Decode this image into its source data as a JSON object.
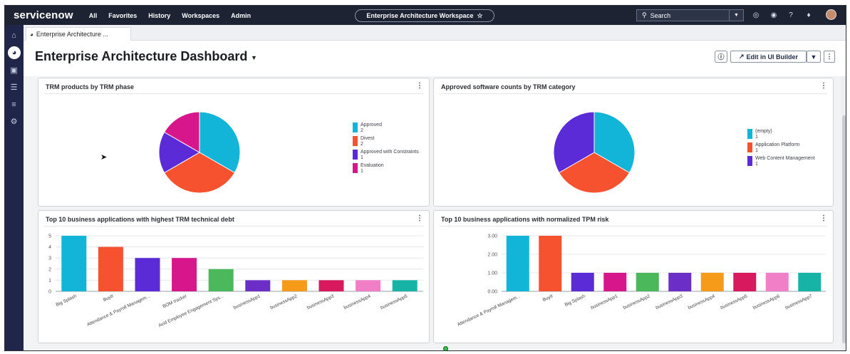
{
  "topbar": {
    "logo": "servicenow",
    "nav": [
      "All",
      "Favorites",
      "History",
      "Workspaces",
      "Admin"
    ],
    "workspace_title": "Enterprise Architecture Workspace",
    "star": "☆",
    "search_placeholder": "Search"
  },
  "tabs": [
    {
      "label": "Enterprise Architecture ..."
    }
  ],
  "header": {
    "title": "Enterprise Architecture Dashboard",
    "edit_button": "Edit in UI Builder"
  },
  "cards": {
    "trm_phase": {
      "title": "TRM products by TRM phase"
    },
    "trm_category": {
      "title": "Approved software counts by TRM category"
    },
    "tech_debt": {
      "title": "Top 10 business applications with highest TRM technical debt"
    },
    "tpm_risk": {
      "title": "Top 10 business applications with normalized TPM risk"
    }
  },
  "colors": {
    "cyan": "#12b4d8",
    "orange": "#f6522f",
    "purple": "#5a2bd6",
    "magenta": "#d6168a",
    "pink": "#e8378f",
    "green": "#4cb85c",
    "violet": "#6b2ec6",
    "amber": "#f59a19",
    "crimson": "#d8195d",
    "lightpink": "#f07fc7",
    "teal": "#17b3a6"
  },
  "chart_data": [
    {
      "type": "pie",
      "title": "TRM products by TRM phase",
      "slices": [
        {
          "label": "Approved",
          "value": 2,
          "color": "#12b4d8"
        },
        {
          "label": "Divest",
          "value": 2,
          "color": "#f6522f"
        },
        {
          "label": "Approved with Constraints",
          "value": 1,
          "color": "#5a2bd6"
        },
        {
          "label": "Evaluation",
          "value": 1,
          "color": "#d6168a"
        }
      ],
      "legend": "right"
    },
    {
      "type": "pie",
      "title": "Approved software counts by TRM category",
      "slices": [
        {
          "label": "(empty)",
          "value": 1,
          "color": "#12b4d8"
        },
        {
          "label": "Application Platform",
          "value": 1,
          "color": "#f6522f"
        },
        {
          "label": "Web Content Management",
          "value": 1,
          "color": "#5a2bd6"
        }
      ],
      "legend": "right"
    },
    {
      "type": "bar",
      "title": "Top 10 business applications with highest TRM technical debt",
      "categories": [
        "Big Splash",
        "BuyIt",
        "Attendance & Payroll Managem...",
        "BOM tracker",
        "Avid Employee Engagement Sys...",
        "businessApp1",
        "businessApp2",
        "businessApp3",
        "businessApp4",
        "businessApp5"
      ],
      "values": [
        5,
        4,
        3,
        3,
        2,
        1,
        1,
        1,
        1,
        1
      ],
      "colors": [
        "#12b4d8",
        "#f6522f",
        "#5a2bd6",
        "#d6168a",
        "#4cb85c",
        "#6b2ec6",
        "#f59a19",
        "#d8195d",
        "#f07fc7",
        "#17b3a6"
      ],
      "yticks": [
        "0",
        "1",
        "2",
        "3",
        "4",
        "5"
      ],
      "ylim": [
        0,
        5
      ],
      "grid": true
    },
    {
      "type": "bar",
      "title": "Top 10 business applications with normalized TPM risk",
      "categories": [
        "Attendance & Payroll Managem...",
        "BuyIt",
        "Big Splash",
        "businessApp1",
        "businessApp2",
        "businessApp3",
        "businessApp4",
        "businessApp5",
        "businessApp6",
        "businessApp7"
      ],
      "values": [
        3,
        3,
        1,
        1,
        1,
        1,
        1,
        1,
        1,
        1
      ],
      "colors": [
        "#12b4d8",
        "#f6522f",
        "#5a2bd6",
        "#d6168a",
        "#4cb85c",
        "#6b2ec6",
        "#f59a19",
        "#d8195d",
        "#f07fc7",
        "#17b3a6"
      ],
      "yticks": [
        "0.00",
        "1.00",
        "2.00",
        "3.00"
      ],
      "ylim": [
        0,
        3
      ],
      "grid": true
    }
  ]
}
